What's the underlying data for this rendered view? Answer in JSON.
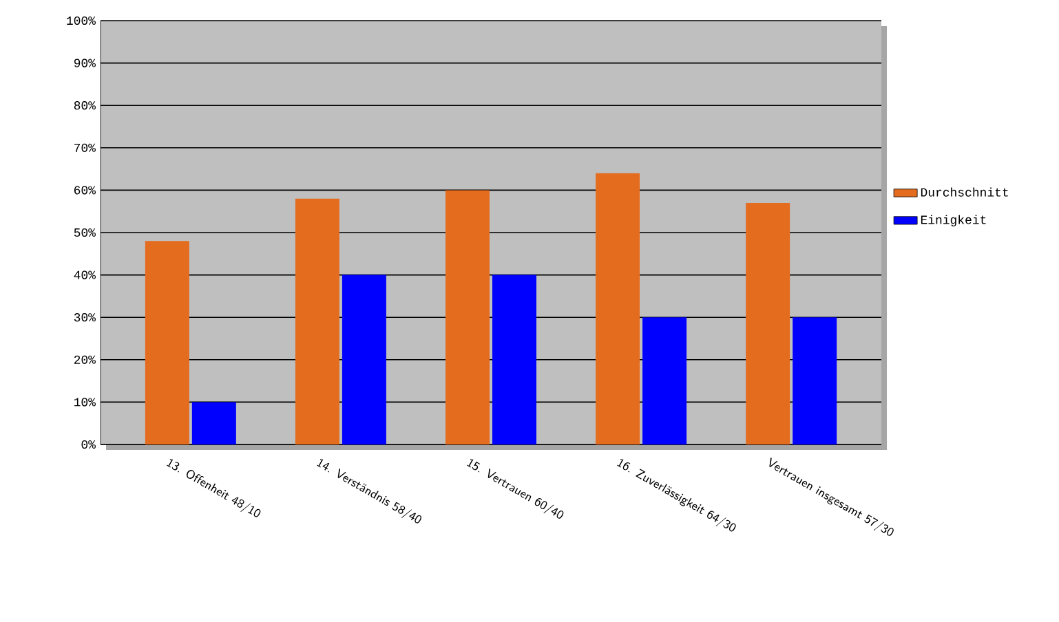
{
  "chart_data": {
    "type": "bar",
    "categories": [
      "13. Offenheit  48/10",
      "14. Verständnis   58/40",
      "15. Vertrauen 60/40",
      "16. Zuverlässigkeit 64/30",
      "Vertrauen insgesamt 57/30"
    ],
    "series": [
      {
        "name": "Durchschnitt",
        "color": "#e46c1e",
        "values": [
          48,
          58,
          60,
          64,
          57
        ]
      },
      {
        "name": "Einigkeit",
        "color": "#0000ff",
        "values": [
          10,
          40,
          40,
          30,
          30
        ]
      }
    ],
    "ylim": [
      0,
      100
    ],
    "yticks": [
      {
        "value": 0,
        "label": "0%"
      },
      {
        "value": 10,
        "label": "10%"
      },
      {
        "value": 20,
        "label": "20%"
      },
      {
        "value": 30,
        "label": "30%"
      },
      {
        "value": 40,
        "label": "40%"
      },
      {
        "value": 50,
        "label": "50%"
      },
      {
        "value": 60,
        "label": "60%"
      },
      {
        "value": 70,
        "label": "70%"
      },
      {
        "value": 80,
        "label": "80%"
      },
      {
        "value": 90,
        "label": "90%"
      },
      {
        "value": 100,
        "label": "100%"
      }
    ],
    "grid": "y",
    "legend": "right"
  }
}
